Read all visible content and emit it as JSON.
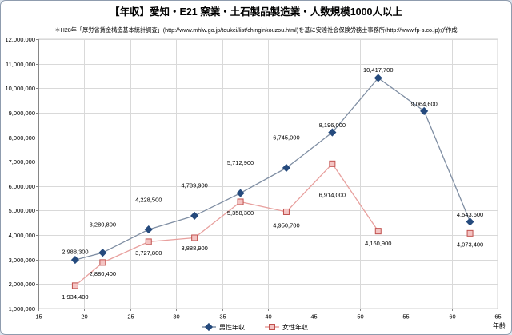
{
  "chart_data": {
    "type": "line",
    "title": "【年収】愛知・E21 窯業・土石製品製造業・人数規模1000人以上",
    "subtitle": "＊H28年「厚労省賃金構造基本統計調査」(http://www.mhlw.go.jp/toukei/list/chinginkouzou.html)を基に安達社会保険労務士事務所(http://www.fp-s.co.jp)が作成",
    "xlabel": "年齢",
    "xlim": [
      15,
      65
    ],
    "ylim": [
      1000000,
      12000000
    ],
    "xticks": [
      "15",
      "20",
      "25",
      "30",
      "35",
      "40",
      "45",
      "50",
      "55",
      "60",
      "65"
    ],
    "yticks": [
      "1,000,000",
      "2,000,000",
      "3,000,000",
      "4,000,000",
      "5,000,000",
      "6,000,000",
      "7,000,000",
      "8,000,000",
      "9,000,000",
      "10,000,000",
      "11,000,000",
      "12,000,000"
    ],
    "x": [
      19,
      22,
      27,
      32,
      37,
      42,
      47,
      52,
      57,
      62
    ],
    "series": [
      {
        "name": "男性年収",
        "values": [
          2988300,
          3280800,
          4228500,
          4789900,
          5712900,
          6745000,
          8196000,
          10417700,
          9064600,
          4543600
        ],
        "data_labels": [
          "2,988,300",
          "3,280,800",
          "4,228,500",
          "4,789,900",
          "5,712,900",
          "6,745,000",
          "8,196,000",
          "10,417,700",
          "9,064,600",
          "4,543,600"
        ],
        "marker": "diamond",
        "line_color": "#7f8ea3",
        "marker_color": "#254a7d",
        "marker_fill": "#254a7d"
      },
      {
        "name": "女性年収",
        "values": [
          1934400,
          2880400,
          3727800,
          3888900,
          5358300,
          4950700,
          6914000,
          4160900,
          null,
          4073400
        ],
        "data_labels": [
          "1,934,400",
          "2,880,400",
          "3,727,800",
          "3,888,900",
          "5,358,300",
          "4,950,700",
          "6,914,000",
          "4,160,900",
          null,
          "4,073,400"
        ],
        "marker": "square",
        "line_color": "#e8a09e",
        "marker_color": "#c0504d",
        "marker_fill": "#f4c4c3"
      }
    ],
    "grid": true,
    "legend": "bottom"
  }
}
